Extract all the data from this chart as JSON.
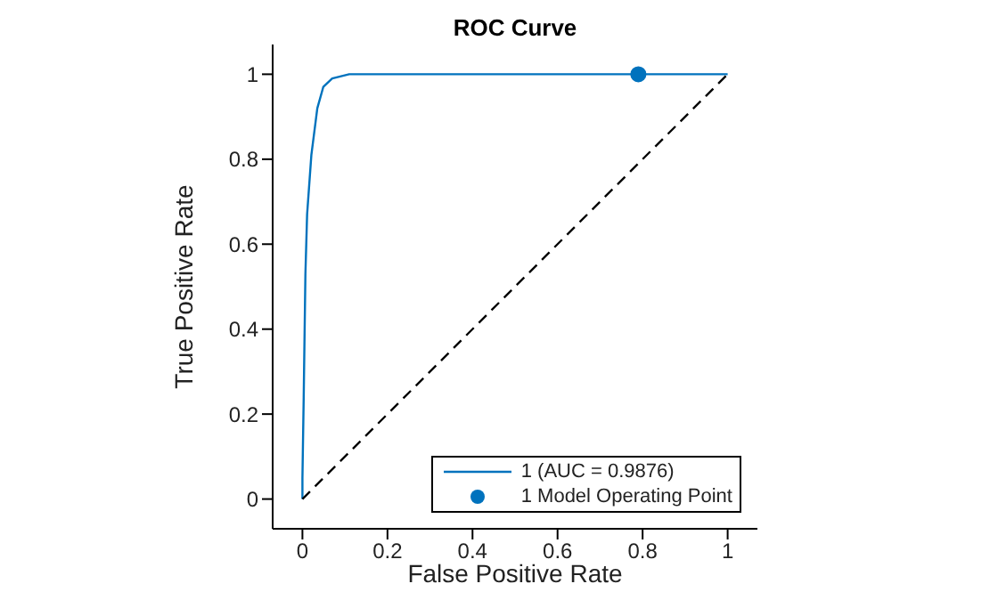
{
  "chart_data": {
    "type": "line",
    "title": "ROC Curve",
    "xlabel": "False Positive Rate",
    "ylabel": "True Positive Rate",
    "xlim": [
      -0.07,
      1.07
    ],
    "ylim": [
      -0.07,
      1.07
    ],
    "xticks": [
      0,
      0.2,
      0.4,
      0.6,
      0.8,
      1
    ],
    "yticks": [
      0,
      0.2,
      0.4,
      0.6,
      0.8,
      1
    ],
    "grid": false,
    "legend": "bottom right",
    "series": [
      {
        "name": "1 (AUC = 0.9876)",
        "type": "line",
        "color": "#0072bd",
        "marker": "none",
        "line_style": "solid",
        "x": [
          0,
          0,
          0.003,
          0.007,
          0.011,
          0.021,
          0.035,
          0.049,
          0.07,
          0.11,
          1
        ],
        "values": [
          0,
          0.05,
          0.24,
          0.53,
          0.67,
          0.81,
          0.92,
          0.97,
          0.99,
          1,
          1
        ]
      },
      {
        "type": "line",
        "color": "#000000",
        "marker": "none",
        "line_style": "dashed",
        "x": [
          0,
          1
        ],
        "values": [
          0,
          1
        ]
      },
      {
        "name": "1 Model Operating Point",
        "type": "scatter",
        "color": "#0072bd",
        "marker": "circle",
        "x": [
          0.79
        ],
        "values": [
          1
        ]
      }
    ]
  }
}
